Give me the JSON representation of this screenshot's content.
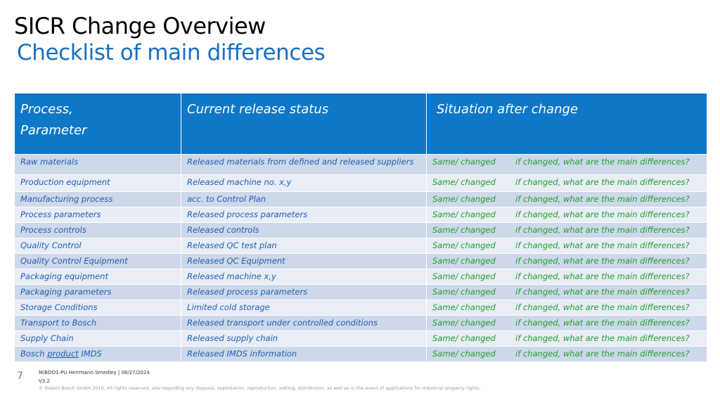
{
  "header": {
    "title": "SICR Change Overview",
    "subtitle": "Checklist of main differences"
  },
  "table": {
    "columns": [
      "Process,\nParameter",
      "Current release status",
      "Situation after change"
    ],
    "status_changed": "Same/ changed",
    "status_note": "if changed, what are the main differences?",
    "rows": [
      {
        "process": "Raw materials",
        "release": "Released materials from defined and released suppliers"
      },
      {
        "process": "Production equipment",
        "release": "Released machine no. x,y"
      },
      {
        "process": "Manufacturing process",
        "release": "acc. to Control Plan"
      },
      {
        "process": "Process parameters",
        "release": "Released process parameters"
      },
      {
        "process": "Process controls",
        "release": "Released controls"
      },
      {
        "process": "Quality Control",
        "release": "Released QC test plan"
      },
      {
        "process": "Quality Control Equipment",
        "release": "Released QC Equipment"
      },
      {
        "process": "Packaging equipment",
        "release": "Released machine x,y"
      },
      {
        "process": "Packaging parameters",
        "release": "Released process parameters"
      },
      {
        "process": "Storage Conditions",
        "release": "Limited cold storage"
      },
      {
        "process": "Transport to Bosch",
        "release": "Released transport under controlled conditions"
      },
      {
        "process": "Supply Chain",
        "release": "Released supply chain"
      },
      {
        "process_prefix": "Bosch ",
        "process_underlined": "product",
        "process_suffix": " IMDS",
        "release": "Released IMDS information"
      }
    ]
  },
  "footer": {
    "page_number": "7",
    "department": "M/BDO1-PU Herrmann-Smedley | 08/27/2024",
    "version": "V3.2",
    "copyright": "© Robert Bosch GmbH 2016. All rights reserved, also regarding any disposal, exploitation, reproduction, editing, distribution, as well as in the event of applications for industrial property rights."
  },
  "colors": {
    "header_bg": "#0e77c8",
    "row_dark": "#cdd8ea",
    "row_light": "#e8edf6",
    "text_blue": "#1f5fb0",
    "text_green": "#22a02a",
    "subtitle": "#1a6fbf"
  }
}
